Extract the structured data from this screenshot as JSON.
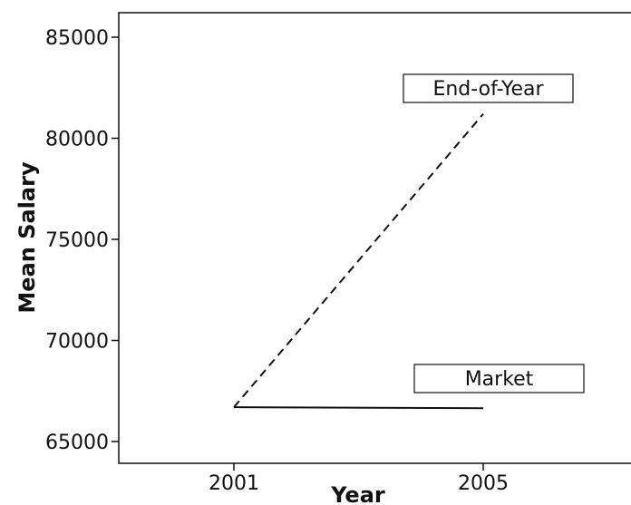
{
  "chart_data": {
    "type": "line",
    "title": "",
    "xlabel": "Year",
    "ylabel": "Mean Salary",
    "x": [
      "2001",
      "2005"
    ],
    "ylim": [
      64000,
      86300
    ],
    "yticks": [
      "65000",
      "70000",
      "75000",
      "80000",
      "85000"
    ],
    "grid": false,
    "series": [
      {
        "name": "End-of-Year",
        "values": [
          66700,
          81200
        ],
        "style": "dashed",
        "color": "#111111"
      },
      {
        "name": "Market",
        "values": [
          66700,
          66650
        ],
        "style": "solid",
        "color": "#111111"
      }
    ]
  }
}
